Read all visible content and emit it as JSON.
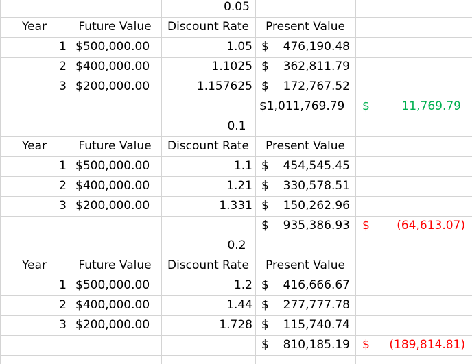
{
  "sections": [
    {
      "rate": "0.05",
      "headers": [
        "Year",
        "Future Value",
        "Discount Rate",
        "Present Value"
      ],
      "rows": [
        {
          "year": "1",
          "fv": "$500,000.00",
          "dr": "1.05",
          "pv_sym": "$",
          "pv": "476,190.48"
        },
        {
          "year": "2",
          "fv": "$400,000.00",
          "dr": "1.1025",
          "pv_sym": "$",
          "pv": "362,811.79"
        },
        {
          "year": "3",
          "fv": "$200,000.00",
          "dr": "1.157625",
          "pv_sym": "$",
          "pv": "172,767.52"
        }
      ],
      "total": "$1,011,769.79",
      "diff_sym": "$",
      "diff": "11,769.79",
      "diff_color": "#00b050"
    },
    {
      "rate": "0.1",
      "headers": [
        "Year",
        "Future Value",
        "Discount Rate",
        "Present Value"
      ],
      "rows": [
        {
          "year": "1",
          "fv": "$500,000.00",
          "dr": "1.1",
          "pv_sym": "$",
          "pv": "454,545.45"
        },
        {
          "year": "2",
          "fv": "$400,000.00",
          "dr": "1.21",
          "pv_sym": "$",
          "pv": "330,578.51"
        },
        {
          "year": "3",
          "fv": "$200,000.00",
          "dr": "1.331",
          "pv_sym": "$",
          "pv": "150,262.96"
        }
      ],
      "total_sym": "$",
      "total": "935,386.93",
      "diff_sym": "$",
      "diff": "(64,613.07)",
      "diff_color": "#ff0000"
    },
    {
      "rate": "0.2",
      "headers": [
        "Year",
        "Future Value",
        "Discount Rate",
        "Present Value"
      ],
      "rows": [
        {
          "year": "1",
          "fv": "$500,000.00",
          "dr": "1.2",
          "pv_sym": "$",
          "pv": "416,666.67"
        },
        {
          "year": "2",
          "fv": "$400,000.00",
          "dr": "1.44",
          "pv_sym": "$",
          "pv": "277,777.78"
        },
        {
          "year": "3",
          "fv": "$200,000.00",
          "dr": "1.728",
          "pv_sym": "$",
          "pv": "115,740.74"
        }
      ],
      "total_sym": "$",
      "total": "810,185.19",
      "diff_sym": "$",
      "diff": "(189,814.81)",
      "diff_color": "#ff0000"
    }
  ]
}
